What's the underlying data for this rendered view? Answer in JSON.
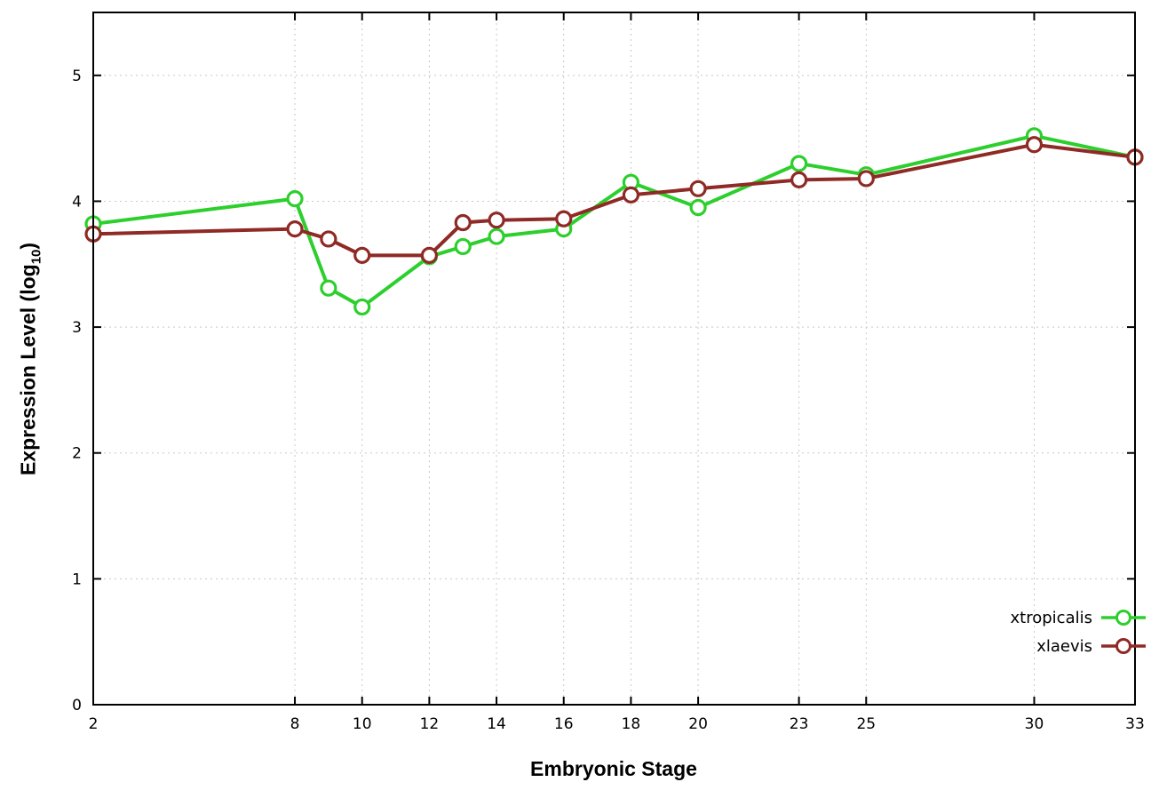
{
  "chart_data": {
    "type": "line",
    "title": "",
    "xlabel": "Embryonic Stage",
    "ylabel_prefix": "Expression Level (log",
    "ylabel_sub": "10",
    "ylabel_suffix": ")",
    "xlim": [
      2,
      33
    ],
    "ylim": [
      0,
      5.5
    ],
    "x_ticks": [
      2,
      8,
      10,
      12,
      14,
      16,
      18,
      20,
      23,
      25,
      30,
      33
    ],
    "y_ticks": [
      0,
      1,
      2,
      3,
      4,
      5
    ],
    "grid": true,
    "legend_position": "bottom-right",
    "x": [
      2,
      8,
      9,
      10,
      12,
      13,
      14,
      16,
      18,
      20,
      23,
      25,
      30,
      33
    ],
    "series": [
      {
        "name": "xtropicalis",
        "color": "#2ccf2c",
        "values": [
          3.82,
          4.02,
          3.31,
          3.16,
          3.56,
          3.64,
          3.72,
          3.78,
          4.15,
          3.95,
          4.3,
          4.21,
          4.52,
          4.35
        ]
      },
      {
        "name": "xlaevis",
        "color": "#8f2a25",
        "values": [
          3.74,
          3.78,
          3.7,
          3.57,
          3.57,
          3.83,
          3.85,
          3.86,
          4.05,
          4.1,
          4.17,
          4.18,
          4.45,
          4.35
        ]
      }
    ],
    "colors": {
      "grid": "#c8c8c8",
      "border": "#000000",
      "tick_label": "#000000"
    }
  }
}
